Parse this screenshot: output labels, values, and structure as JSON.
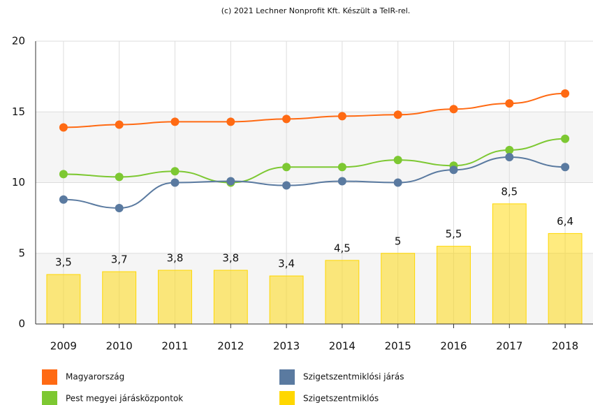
{
  "chart_data": {
    "type": "line",
    "title": "(c) 2021 Lechner Nonprofit Kft. Készült a TeIR-rel.",
    "categories": [
      "2009",
      "2010",
      "2011",
      "2012",
      "2013",
      "2014",
      "2015",
      "2016",
      "2017",
      "2018"
    ],
    "ylim": [
      0,
      20
    ],
    "yticks": [
      0,
      5,
      10,
      15,
      20
    ],
    "grid": true,
    "series": [
      {
        "name": "Magyarország",
        "color": "#ff6a13",
        "type": "line",
        "values": [
          13.9,
          14.1,
          14.3,
          14.3,
          14.5,
          14.7,
          14.8,
          15.2,
          15.6,
          16.3
        ]
      },
      {
        "name": "Pest megyei járásközpontok",
        "color": "#7dc832",
        "type": "line",
        "values": [
          10.6,
          10.4,
          10.8,
          10.0,
          11.1,
          11.1,
          11.6,
          11.2,
          12.3,
          13.1
        ]
      },
      {
        "name": "Szigetszentmiklósi járás",
        "color": "#5a7aa0",
        "type": "line",
        "values": [
          8.8,
          8.2,
          10.0,
          10.1,
          9.8,
          10.1,
          10.0,
          10.9,
          11.8,
          11.1
        ]
      },
      {
        "name": "Szigetszentmiklós",
        "color": "#ffd700",
        "type": "bar",
        "values": [
          3.5,
          3.7,
          3.8,
          3.8,
          3.4,
          4.5,
          5,
          5.5,
          8.5,
          6.4
        ],
        "value_labels": [
          "3,5",
          "3,7",
          "3,8",
          "3,8",
          "3,4",
          "4,5",
          "5",
          "5,5",
          "8,5",
          "6,4"
        ]
      }
    ]
  }
}
